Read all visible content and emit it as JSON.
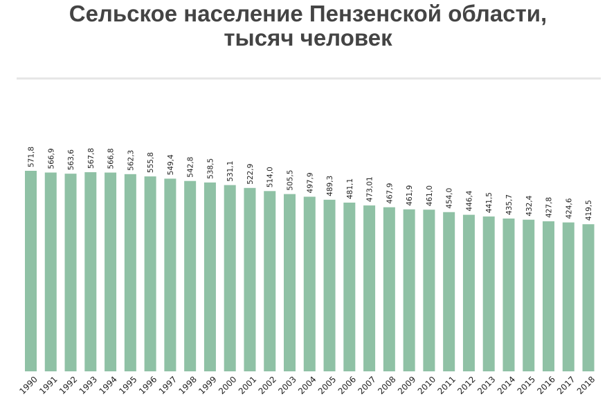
{
  "chart_data": {
    "type": "bar",
    "title": "Сельское население Пензенской области,",
    "subtitle": "тысяч человек",
    "categories": [
      "1990",
      "1991",
      "1992",
      "1993",
      "1994",
      "1995",
      "1996",
      "1997",
      "1998",
      "1999",
      "2000",
      "2001",
      "2002",
      "2003",
      "2004",
      "2005",
      "2006",
      "2007",
      "2008",
      "2009",
      "2010",
      "2011",
      "2012",
      "2013",
      "2014",
      "2015",
      "2016",
      "2017",
      "2018"
    ],
    "values": [
      571.8,
      566.9,
      563.6,
      567.8,
      566.8,
      562.3,
      555.8,
      549.4,
      542.8,
      538.5,
      531.1,
      522.9,
      514.0,
      505.5,
      497.9,
      489.3,
      481.1,
      473.01,
      467.9,
      461.9,
      461.0,
      454.0,
      446.4,
      441.5,
      435.7,
      432.4,
      427.8,
      424.6,
      419.5
    ],
    "labels": [
      "571,8",
      "566,9",
      "563,6",
      "567,8",
      "566,8",
      "562,3",
      "555,8",
      "549,4",
      "542,8",
      "538,5",
      "531,1",
      "522,9",
      "514,0",
      "505,5",
      "497,9",
      "489,3",
      "481,1",
      "473,01",
      "467,9",
      "461,9",
      "461,0",
      "454,0",
      "446,4",
      "441,5",
      "435,7",
      "432,4",
      "427,8",
      "424,6",
      "419,5"
    ],
    "bar_color": "#8fc1a5",
    "grid": false
  }
}
